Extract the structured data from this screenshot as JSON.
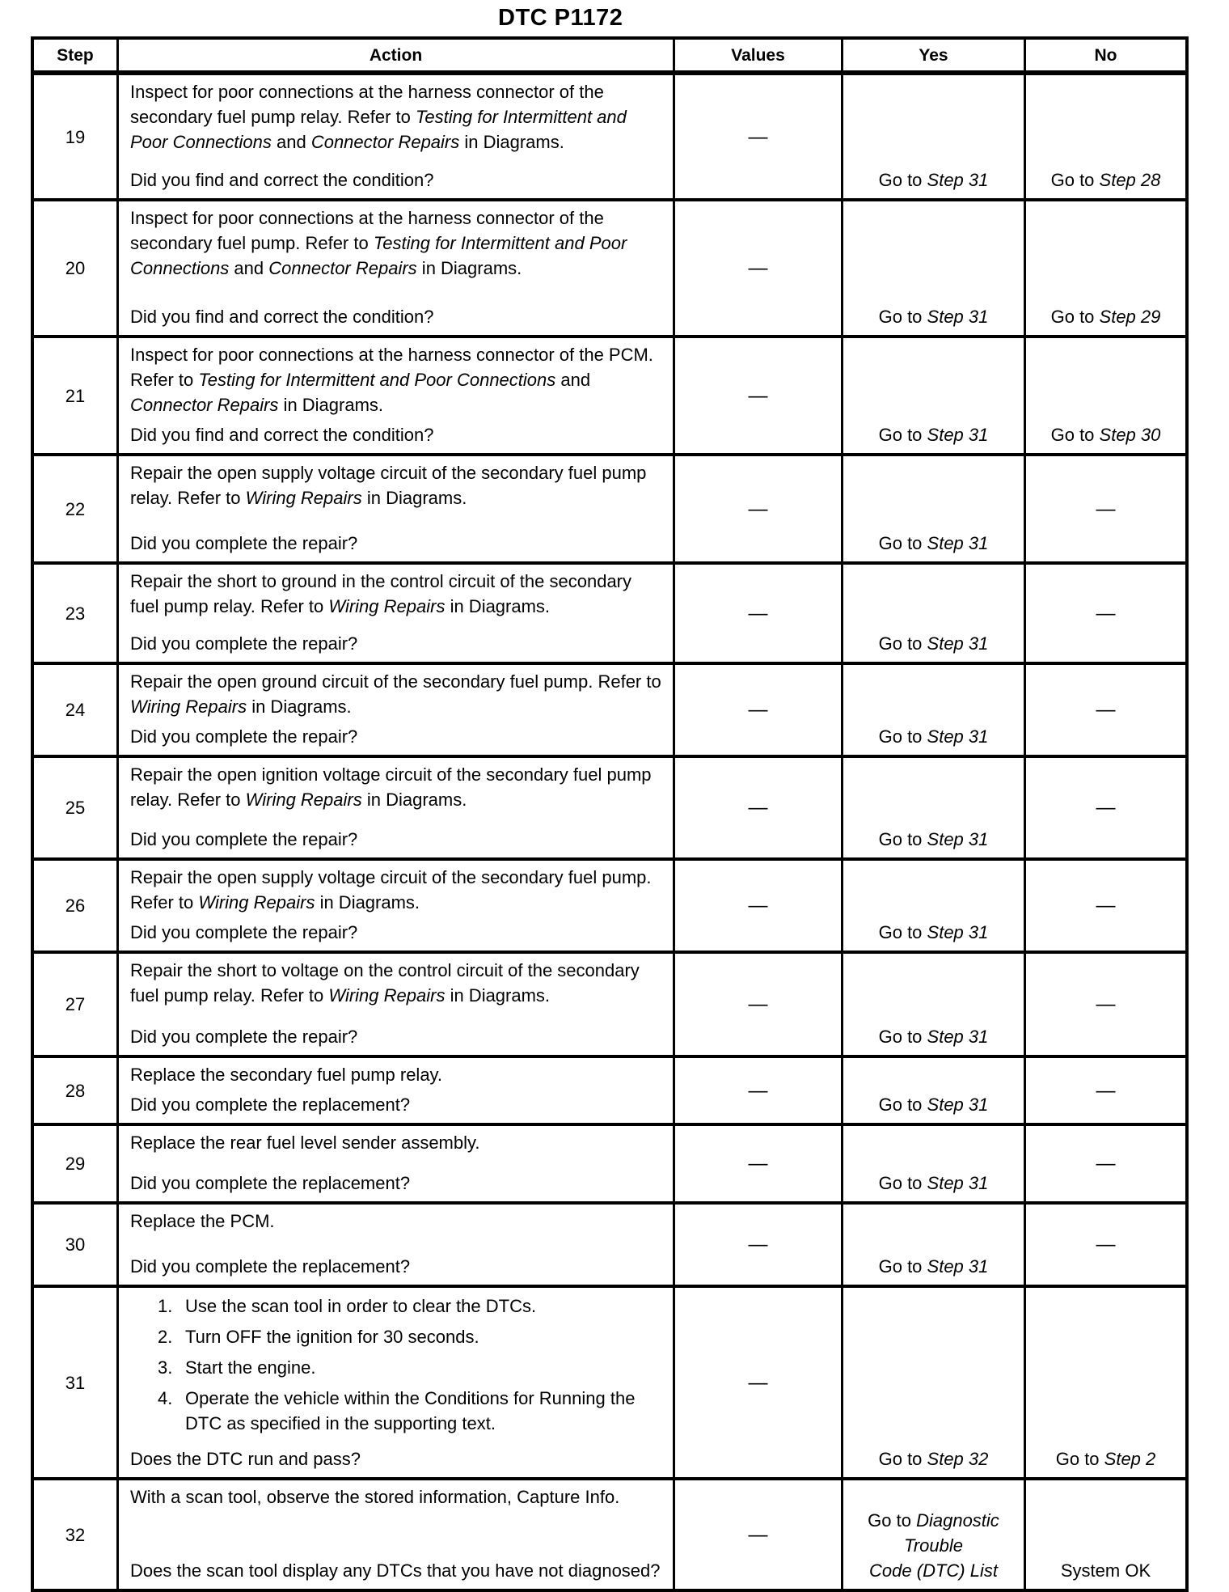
{
  "title": "DTC P1172",
  "table": {
    "headers": [
      "Step",
      "Action",
      "Values",
      "Yes",
      "No"
    ],
    "dash": "—",
    "rows": [
      {
        "step": "19",
        "action": [
          [
            {
              "t": "Inspect for poor connections at the harness connector of the secondary fuel pump relay. Refer to "
            },
            {
              "t": "Testing for Intermittent and Poor Connections",
              "i": true
            },
            {
              "t": " and "
            },
            {
              "t": "Connector Repairs",
              "i": true
            },
            {
              "t": " in Diagrams."
            }
          ]
        ],
        "question": "Did you find and correct the condition?",
        "values": "—",
        "yes": [
          [
            {
              "t": "Go to "
            },
            {
              "t": "Step 31",
              "i": true
            }
          ]
        ],
        "no": [
          [
            {
              "t": "Go to "
            },
            {
              "t": "Step 28",
              "i": true
            }
          ]
        ]
      },
      {
        "step": "20",
        "action": [
          [
            {
              "t": "Inspect for poor connections at the harness connector of the secondary fuel pump. Refer to "
            },
            {
              "t": "Testing for Intermittent and Poor Connections",
              "i": true
            },
            {
              "t": " and "
            },
            {
              "t": "Connector Repairs",
              "i": true
            },
            {
              "t": " in Diagrams."
            }
          ]
        ],
        "question": "Did you find and correct the condition?",
        "values": "—",
        "yes": [
          [
            {
              "t": "Go to "
            },
            {
              "t": "Step 31",
              "i": true
            }
          ]
        ],
        "no": [
          [
            {
              "t": "Go to "
            },
            {
              "t": "Step 29",
              "i": true
            }
          ]
        ]
      },
      {
        "step": "21",
        "action": [
          [
            {
              "t": "Inspect for poor connections at the harness connector of the PCM. Refer to "
            },
            {
              "t": "Testing for Intermittent and Poor Connections",
              "i": true
            },
            {
              "t": " and "
            },
            {
              "t": "Connector Repairs",
              "i": true
            },
            {
              "t": " in Diagrams."
            }
          ]
        ],
        "question": "Did you find and correct the condition?",
        "values": "—",
        "yes": [
          [
            {
              "t": "Go to "
            },
            {
              "t": "Step 31",
              "i": true
            }
          ]
        ],
        "no": [
          [
            {
              "t": "Go to "
            },
            {
              "t": "Step 30",
              "i": true
            }
          ]
        ]
      },
      {
        "step": "22",
        "action": [
          [
            {
              "t": "Repair the open supply voltage circuit of the secondary fuel pump relay. Refer to "
            },
            {
              "t": "Wiring Repairs",
              "i": true
            },
            {
              "t": " in Diagrams."
            }
          ]
        ],
        "question": "Did you complete the repair?",
        "values": "—",
        "yes": [
          [
            {
              "t": "Go to "
            },
            {
              "t": "Step 31",
              "i": true
            }
          ]
        ],
        "no": [
          [
            {
              "t": "—"
            }
          ]
        ]
      },
      {
        "step": "23",
        "action": [
          [
            {
              "t": "Repair the short to ground in the control circuit of the secondary fuel pump relay. Refer to "
            },
            {
              "t": "Wiring Repairs",
              "i": true
            },
            {
              "t": " in Diagrams."
            }
          ]
        ],
        "question": "Did you complete the repair?",
        "values": "—",
        "yes": [
          [
            {
              "t": "Go to "
            },
            {
              "t": "Step 31",
              "i": true
            }
          ]
        ],
        "no": [
          [
            {
              "t": "—"
            }
          ]
        ]
      },
      {
        "step": "24",
        "action": [
          [
            {
              "t": "Repair the open ground circuit of the secondary fuel pump. Refer to "
            },
            {
              "t": "Wiring Repairs",
              "i": true
            },
            {
              "t": " in Diagrams."
            }
          ]
        ],
        "question": "Did you complete the repair?",
        "values": "—",
        "yes": [
          [
            {
              "t": "Go to "
            },
            {
              "t": "Step 31",
              "i": true
            }
          ]
        ],
        "no": [
          [
            {
              "t": "—"
            }
          ]
        ]
      },
      {
        "step": "25",
        "action": [
          [
            {
              "t": "Repair the open ignition voltage circuit of the secondary fuel pump relay. Refer to "
            },
            {
              "t": "Wiring Repairs",
              "i": true
            },
            {
              "t": " in Diagrams."
            }
          ]
        ],
        "question": "Did you complete the repair?",
        "values": "—",
        "yes": [
          [
            {
              "t": "Go to "
            },
            {
              "t": "Step 31",
              "i": true
            }
          ]
        ],
        "no": [
          [
            {
              "t": "—"
            }
          ]
        ]
      },
      {
        "step": "26",
        "action": [
          [
            {
              "t": "Repair the open supply voltage circuit of the secondary fuel pump. Refer to "
            },
            {
              "t": "Wiring Repairs",
              "i": true
            },
            {
              "t": " in Diagrams."
            }
          ]
        ],
        "question": "Did you complete the repair?",
        "values": "—",
        "yes": [
          [
            {
              "t": "Go to "
            },
            {
              "t": "Step 31",
              "i": true
            }
          ]
        ],
        "no": [
          [
            {
              "t": "—"
            }
          ]
        ]
      },
      {
        "step": "27",
        "action": [
          [
            {
              "t": "Repair the short to voltage on the control circuit of the secondary fuel pump relay. Refer to "
            },
            {
              "t": "Wiring Repairs",
              "i": true
            },
            {
              "t": " in Diagrams."
            }
          ]
        ],
        "question": "Did you complete the repair?",
        "values": "—",
        "yes": [
          [
            {
              "t": "Go to "
            },
            {
              "t": "Step 31",
              "i": true
            }
          ]
        ],
        "no": [
          [
            {
              "t": "—"
            }
          ]
        ]
      },
      {
        "step": "28",
        "action": [
          [
            {
              "t": "Replace the secondary fuel pump relay."
            }
          ]
        ],
        "question": "Did you complete the replacement?",
        "values": "—",
        "yes": [
          [
            {
              "t": "Go to "
            },
            {
              "t": "Step 31",
              "i": true
            }
          ]
        ],
        "no": [
          [
            {
              "t": "—"
            }
          ]
        ]
      },
      {
        "step": "29",
        "action": [
          [
            {
              "t": "Replace the rear fuel level sender assembly."
            }
          ]
        ],
        "question": "Did you complete the replacement?",
        "values": "—",
        "yes": [
          [
            {
              "t": "Go to "
            },
            {
              "t": "Step 31",
              "i": true
            }
          ]
        ],
        "no": [
          [
            {
              "t": "—"
            }
          ]
        ]
      },
      {
        "step": "30",
        "action": [
          [
            {
              "t": "Replace the PCM."
            }
          ]
        ],
        "question": "Did you complete the replacement?",
        "values": "—",
        "yes": [
          [
            {
              "t": "Go to "
            },
            {
              "t": "Step 31",
              "i": true
            }
          ]
        ],
        "no": [
          [
            {
              "t": "—"
            }
          ]
        ]
      },
      {
        "step": "31",
        "action_list": [
          {
            "num": "1.",
            "text": "Use the scan tool in order to clear the DTCs."
          },
          {
            "num": "2.",
            "text": "Turn OFF the ignition for 30 seconds."
          },
          {
            "num": "3.",
            "text": "Start the engine."
          },
          {
            "num": "4.",
            "text": "Operate the vehicle within the Conditions for Running the DTC as specified in the supporting text."
          }
        ],
        "question": "Does the DTC run and pass?",
        "values": "—",
        "yes": [
          [
            {
              "t": "Go to "
            },
            {
              "t": "Step 32",
              "i": true
            }
          ]
        ],
        "no": [
          [
            {
              "t": "Go to "
            },
            {
              "t": "Step 2",
              "i": true
            }
          ]
        ]
      },
      {
        "step": "32",
        "action": [
          [
            {
              "t": "With a scan tool, observe the stored information, Capture Info."
            }
          ]
        ],
        "question": "Does the scan tool display any DTCs that you have not diagnosed?",
        "values": "—",
        "yes": [
          [
            {
              "t": "Go to "
            },
            {
              "t": "Diagnostic",
              "i": true
            }
          ],
          [
            {
              "t": "Trouble",
              "i": true
            }
          ],
          [
            {
              "t": "Code (DTC) List",
              "i": true
            }
          ]
        ],
        "no": [
          [
            {
              "t": "System OK"
            }
          ]
        ]
      }
    ]
  }
}
